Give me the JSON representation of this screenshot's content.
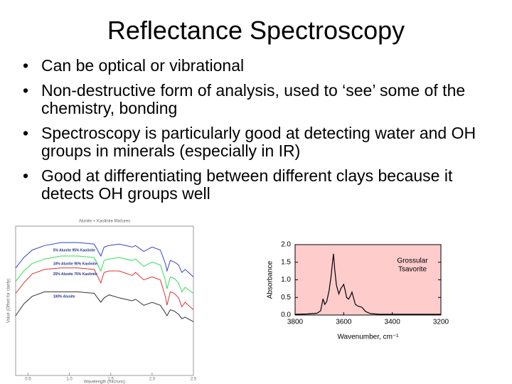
{
  "title": "Reflectance Spectroscopy",
  "bullets": [
    "Can be optical or vibrational",
    "Non-destructive form of analysis, used to ‘see’ some of the chemistry, bonding",
    "Spectroscopy is particularly good at detecting water and OH groups in minerals (especially in IR)",
    "Good at differentiating between different clays because it detects OH groups well"
  ],
  "chart_data": [
    {
      "type": "line",
      "title": "Alunite + Kaolinite Mixtures",
      "xlabel": "Wavelength (microns)",
      "ylabel": "Value (Offset for clarity)",
      "x": [
        0.35,
        0.45,
        0.55,
        0.7,
        0.9,
        1.1,
        1.3,
        1.38,
        1.42,
        1.48,
        1.6,
        1.76,
        1.8,
        1.9,
        2.0,
        2.1,
        2.16,
        2.18,
        2.22,
        2.27,
        2.32,
        2.36,
        2.4,
        2.5
      ],
      "series": [
        {
          "name": "5% Alunite 95% Kaolinite",
          "color": "#3344cc",
          "values": [
            0.72,
            0.79,
            0.84,
            0.87,
            0.89,
            0.89,
            0.88,
            0.8,
            0.86,
            0.87,
            0.88,
            0.86,
            0.87,
            0.83,
            0.86,
            0.84,
            0.75,
            0.7,
            0.77,
            0.76,
            0.74,
            0.69,
            0.71,
            0.66
          ]
        },
        {
          "name": "10% Alunite 90% Kaolinite",
          "color": "#33dd55",
          "values": [
            0.63,
            0.7,
            0.75,
            0.78,
            0.8,
            0.8,
            0.79,
            0.7,
            0.77,
            0.78,
            0.79,
            0.77,
            0.78,
            0.73,
            0.76,
            0.74,
            0.64,
            0.58,
            0.66,
            0.65,
            0.62,
            0.56,
            0.59,
            0.55
          ]
        },
        {
          "name": "25% Alunite 75% Kaolinite",
          "color": "#dd3333",
          "values": [
            0.55,
            0.62,
            0.68,
            0.71,
            0.72,
            0.72,
            0.71,
            0.62,
            0.69,
            0.7,
            0.7,
            0.67,
            0.69,
            0.64,
            0.66,
            0.64,
            0.53,
            0.47,
            0.56,
            0.55,
            0.52,
            0.46,
            0.49,
            0.44
          ]
        },
        {
          "name": "100% Alunite",
          "color": "#333333",
          "values": [
            0.4,
            0.48,
            0.53,
            0.56,
            0.56,
            0.56,
            0.55,
            0.49,
            0.52,
            0.54,
            0.52,
            0.5,
            0.51,
            0.47,
            0.49,
            0.47,
            0.42,
            0.4,
            0.44,
            0.43,
            0.41,
            0.38,
            0.39,
            0.36
          ]
        }
      ],
      "xlim": [
        0.35,
        2.5
      ],
      "ylim": [
        0,
        1
      ],
      "xticks": [
        0.5,
        {
          "value": 1,
          "label": "1.0"
        },
        1.5,
        {
          "value": 2,
          "label": "2.0"
        },
        2.5
      ]
    },
    {
      "type": "line",
      "xlabel": "Wavenumber, cm⁻¹",
      "ylabel": "Absorbance",
      "annotations": [
        "Grossular",
        "Tsavorite"
      ],
      "background": "#ffcccc",
      "color": "#000000",
      "x": [
        3800,
        3750,
        3710,
        3695,
        3685,
        3678,
        3670,
        3660,
        3652,
        3646,
        3642,
        3637,
        3630,
        3620,
        3612,
        3605,
        3600,
        3594,
        3588,
        3580,
        3572,
        3566,
        3560,
        3552,
        3540,
        3525,
        3510,
        3490,
        3450,
        3400,
        3300,
        3200
      ],
      "values": [
        0.02,
        0.03,
        0.05,
        0.12,
        0.46,
        0.3,
        0.38,
        0.7,
        1.1,
        1.5,
        1.74,
        1.3,
        0.85,
        0.6,
        0.75,
        0.82,
        0.87,
        0.7,
        0.5,
        0.45,
        0.55,
        0.65,
        0.5,
        0.3,
        0.25,
        0.22,
        0.1,
        0.04,
        0.02,
        0.02,
        0.02,
        0.02
      ],
      "xlim": [
        3800,
        3200
      ],
      "ylim": [
        0,
        2
      ],
      "xticks": [
        3800,
        3600,
        3400,
        3200
      ],
      "yticks": [
        {
          "value": 0,
          "label": "0.0"
        },
        {
          "value": 0.5,
          "label": "0.5"
        },
        {
          "value": 1,
          "label": "1.0"
        },
        {
          "value": 1.5,
          "label": "1.5"
        },
        {
          "value": 2,
          "label": "2.0"
        }
      ]
    }
  ]
}
